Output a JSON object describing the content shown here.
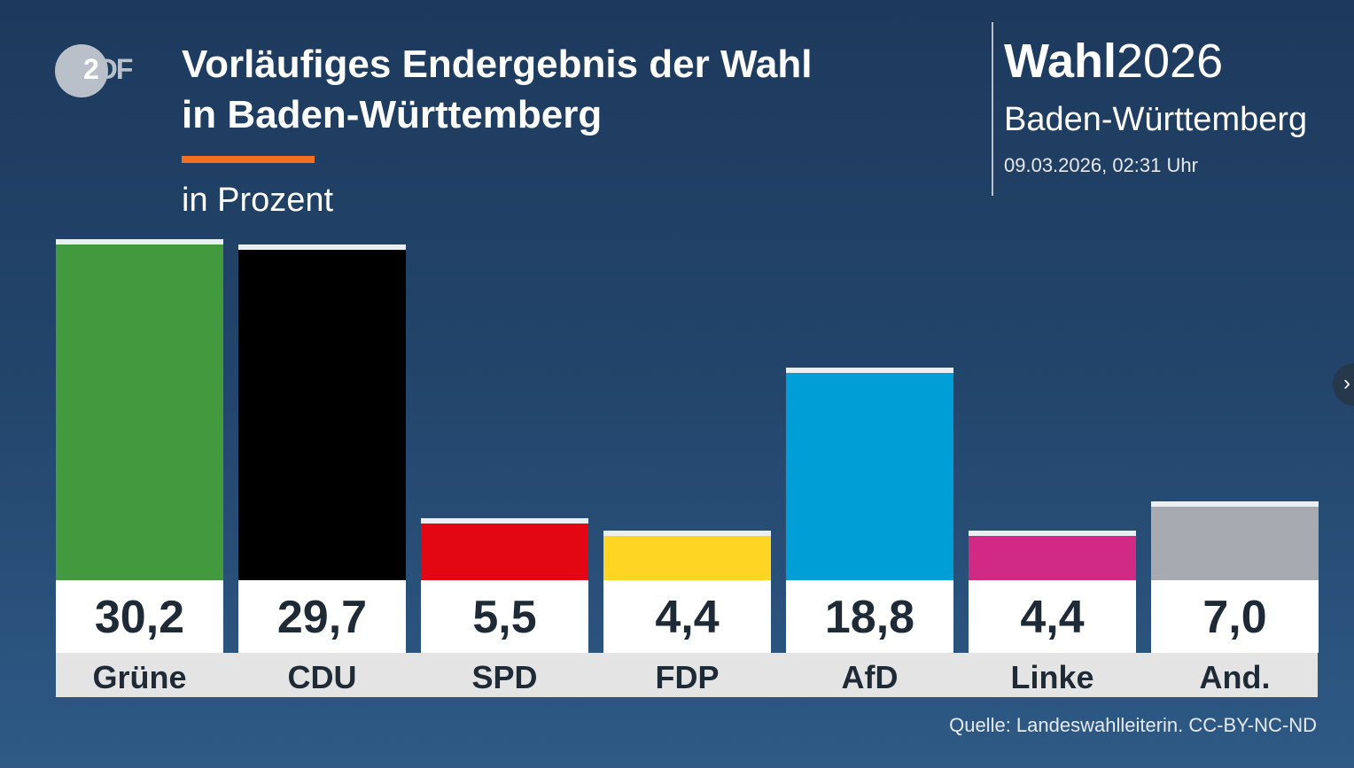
{
  "header": {
    "logo": "ZDF",
    "title_line1": "Vorläufiges Endergebnis der Wahl",
    "title_line2": "in Baden-Württemberg",
    "subtitle": "in Prozent",
    "brand_bold": "Wahl",
    "brand_year": "2026",
    "region": "Baden-Württemberg",
    "date": "09.03.2026, 02:31 Uhr"
  },
  "source": "Quelle: Landeswahlleiterin. CC-BY-NC-ND",
  "chart_data": {
    "type": "bar",
    "title": "Vorläufiges Endergebnis der Wahl in Baden-Württemberg",
    "ylabel": "in Prozent",
    "categories": [
      "Grüne",
      "CDU",
      "SPD",
      "FDP",
      "AfD",
      "Linke",
      "And."
    ],
    "values": [
      30.2,
      29.7,
      5.5,
      4.4,
      18.8,
      4.4,
      7.0
    ],
    "labels": [
      "30,2",
      "29,7",
      "5,5",
      "4,4",
      "18,8",
      "4,4",
      "7,0"
    ],
    "colors": [
      "#43993d",
      "#000000",
      "#e30613",
      "#ffd524",
      "#009ed6",
      "#d02a85",
      "#a7aab0"
    ],
    "ylim": [
      0,
      32
    ],
    "grid": false
  }
}
